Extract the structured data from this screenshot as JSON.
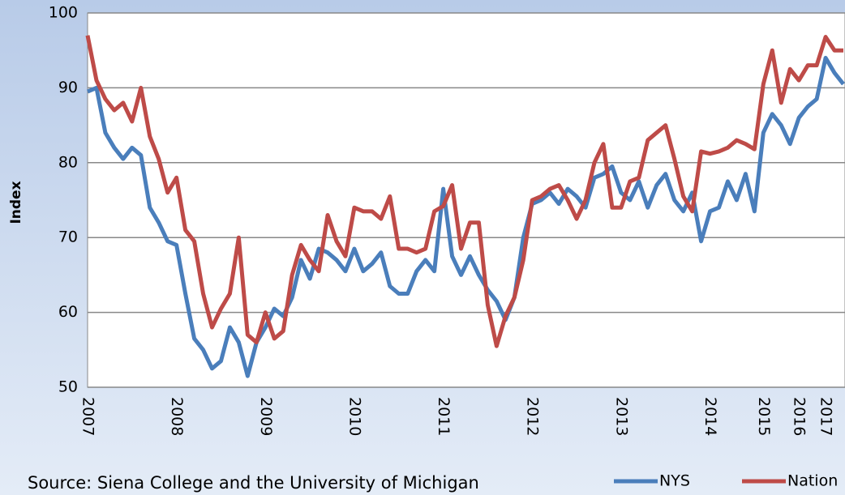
{
  "chart_data": {
    "type": "line",
    "y_label": "Index",
    "source": "Source: Siena College and the University of Michigan",
    "categories": [
      "2007",
      null,
      null,
      null,
      null,
      null,
      null,
      null,
      null,
      null,
      "2008",
      null,
      null,
      null,
      null,
      null,
      null,
      null,
      null,
      null,
      "2009",
      null,
      null,
      null,
      null,
      null,
      null,
      null,
      null,
      null,
      "2010",
      null,
      null,
      null,
      null,
      null,
      null,
      null,
      null,
      null,
      "2011",
      null,
      null,
      null,
      null,
      null,
      null,
      null,
      null,
      null,
      "2012",
      null,
      null,
      null,
      null,
      null,
      null,
      null,
      null,
      null,
      "2013",
      null,
      null,
      null,
      null,
      null,
      null,
      null,
      null,
      null,
      "2014",
      null,
      null,
      null,
      null,
      null,
      "2015",
      null,
      null,
      null,
      "2016",
      null,
      null,
      "2017",
      null,
      null
    ],
    "series": [
      {
        "name": "NYS",
        "color": "#4a7ebb",
        "values": [
          89.5,
          90,
          84,
          82,
          80.5,
          82,
          81,
          74,
          72,
          69.5,
          69,
          62.5,
          56.5,
          55,
          52.5,
          53.5,
          58,
          56,
          51.5,
          56,
          58,
          60.5,
          59.5,
          62,
          67,
          64.5,
          68.5,
          68,
          67,
          65.5,
          68.5,
          65.5,
          66.5,
          68,
          63.5,
          62.5,
          62.5,
          65.5,
          67,
          65.5,
          76.5,
          67.5,
          65,
          67.5,
          65,
          63,
          61.5,
          59,
          62,
          70,
          74.5,
          75,
          76,
          74.5,
          76.5,
          75.5,
          74,
          78,
          78.5,
          79.5,
          76,
          75,
          77.5,
          74,
          77,
          78.5,
          75,
          73.5,
          76,
          69.5,
          73.5,
          74,
          77.5,
          75,
          78.5,
          73.5,
          84,
          86.5,
          85,
          82.5,
          86,
          87.5,
          88.5,
          94,
          92,
          90.5
        ]
      },
      {
        "name": "Nation",
        "color": "#be4b48",
        "values": [
          97,
          91,
          88.5,
          87,
          88,
          85.5,
          90,
          83.5,
          80.5,
          76,
          78,
          71,
          69.5,
          62.5,
          58,
          60.5,
          62.5,
          70,
          57,
          56,
          60,
          56.5,
          57.5,
          65,
          69,
          67,
          65.5,
          73,
          69.5,
          67.5,
          74,
          73.5,
          73.5,
          72.5,
          75.5,
          68.5,
          68.5,
          68,
          68.5,
          73.5,
          74.2,
          77,
          68.5,
          72,
          72,
          61,
          55.5,
          59.5,
          62,
          67,
          75,
          75.5,
          76.5,
          77,
          75,
          72.5,
          75,
          80,
          82.5,
          74,
          74,
          77.5,
          78,
          83,
          84,
          85,
          80.5,
          75.5,
          73.5,
          81.5,
          81.2,
          81.5,
          82,
          83,
          82.5,
          81.8,
          90.5,
          95,
          88,
          92.5,
          91,
          93,
          93,
          96.8,
          95,
          95
        ]
      }
    ],
    "ylim": [
      50,
      100
    ],
    "yticks": [
      50,
      60,
      70,
      80,
      90,
      100
    ],
    "grid": true
  }
}
